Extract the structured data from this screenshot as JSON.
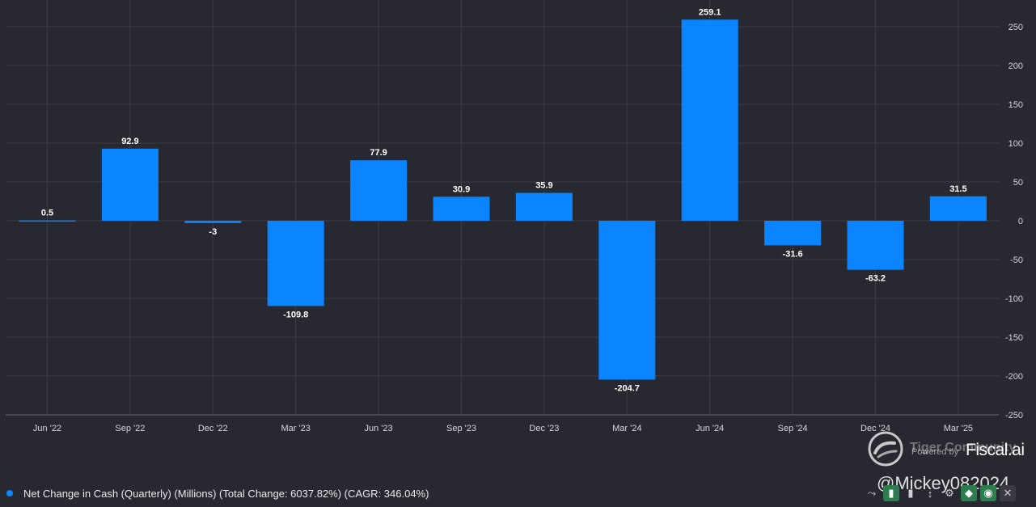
{
  "chart_data": {
    "type": "bar",
    "categories": [
      "Jun '22",
      "Sep '22",
      "Dec '22",
      "Mar '23",
      "Jun '23",
      "Sep '23",
      "Dec '23",
      "Mar '24",
      "Jun '24",
      "Sep '24",
      "Dec '24",
      "Mar '25"
    ],
    "values": [
      0.5,
      92.9,
      -3,
      -109.8,
      77.9,
      30.9,
      35.9,
      -204.7,
      259.1,
      -31.6,
      -63.2,
      31.5
    ],
    "data_labels": [
      "0.5",
      "92.9",
      "-3",
      "-109.8",
      "77.9",
      "30.9",
      "35.9",
      "-204.7",
      "259.1",
      "-31.6",
      "-63.2",
      "31.5"
    ],
    "y_ticks": [
      250,
      200,
      150,
      100,
      50,
      0,
      -50,
      -100,
      -150,
      -200,
      -250
    ],
    "ylim": [
      -250,
      250
    ],
    "y_axis_side": "right",
    "grid": true,
    "bar_color": "#0a84ff",
    "legend_position": "bottom-left",
    "title": "",
    "xlabel": "",
    "ylabel": ""
  },
  "legend": {
    "label": "Net Change in Cash (Quarterly) (Millions) (Total Change: 6037.82%) (CAGR: 346.04%)",
    "color": "#0a84ff"
  },
  "watermark": {
    "tiger_text": "Tiger Community",
    "powered_by": "Powered by",
    "brand": "Fiscal.ai",
    "handle": "@Mickey082024"
  },
  "toolbar": {
    "icons": [
      "trend-line-icon",
      "bar-chart-icon",
      "bar-chart-alt-icon",
      "sort-icon",
      "settings-icon",
      "tag-icon",
      "visibility-icon",
      "close-icon"
    ],
    "glyphs": [
      "⤳",
      "▮",
      "▮",
      "↕",
      "⚙",
      "◆",
      "◉",
      "✕"
    ]
  },
  "colors": {
    "background": "#282830",
    "grid": "#3d3d47",
    "accent": "#0a84ff",
    "toolbar_green": "#2e7d4f"
  }
}
